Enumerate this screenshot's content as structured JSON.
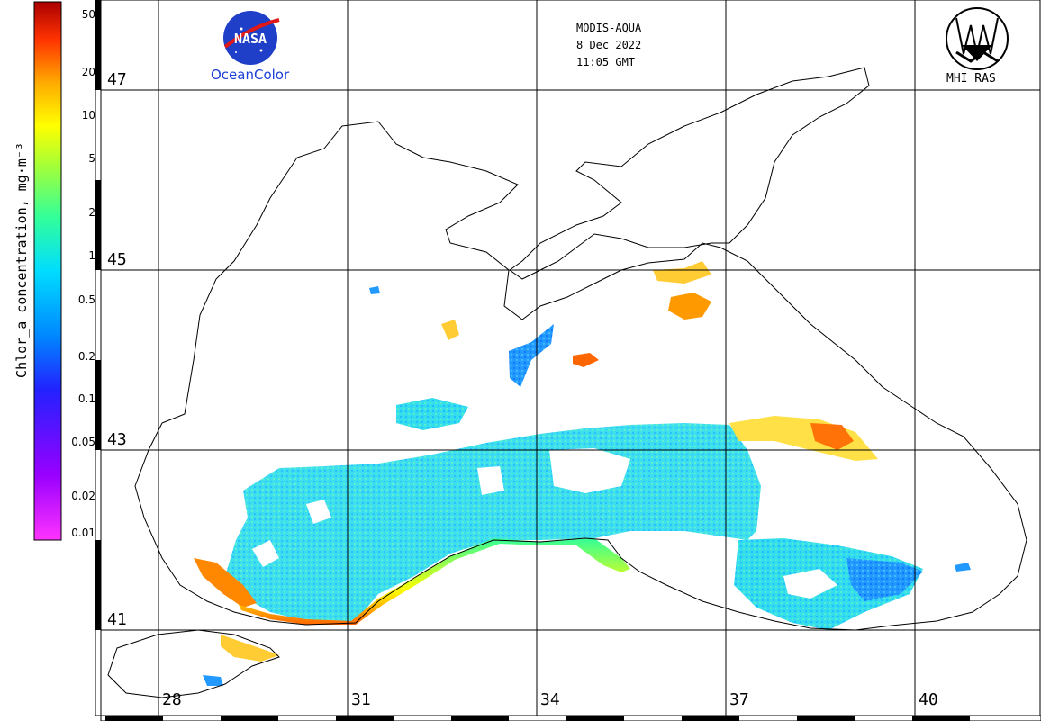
{
  "header": {
    "sensor": "MODIS-AQUA",
    "date": "8 Dec 2022",
    "time": "11:05 GMT"
  },
  "logos": {
    "left_text": "OceanColor",
    "left_badge": "NASA",
    "right_text": "MHI RAS"
  },
  "colorbar": {
    "title": "Chlor_a concentration, mg·m⁻³",
    "ticks": [
      "50",
      "20",
      "10",
      "5",
      "2",
      "1",
      "0.5",
      "0.2",
      "0.1",
      "0.05",
      "0.02",
      "0.01"
    ],
    "scale": "log",
    "range": [
      0.01,
      60
    ],
    "colors": [
      "#ff33ff",
      "#9900ff",
      "#2222ff",
      "#0088ff",
      "#00ddff",
      "#33ff99",
      "#aaff33",
      "#ffff00",
      "#ffaa00",
      "#ff3300",
      "#aa0000"
    ]
  },
  "grid": {
    "latitudes": [
      "47",
      "45",
      "43",
      "41"
    ],
    "longitudes": [
      "28",
      "31",
      "34",
      "37",
      "40"
    ]
  }
}
